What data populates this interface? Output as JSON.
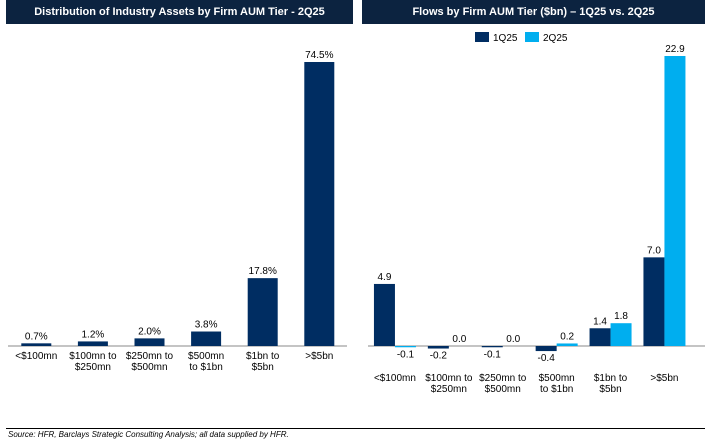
{
  "chart_data": [
    {
      "type": "bar",
      "title": "Distribution of Industry Assets by Firm AUM Tier - 2Q25",
      "categories": [
        "<$100mn",
        "$100mn to $250mn",
        "$250mn to $500mn",
        "$500mn to $1bn",
        "$1bn to $5bn",
        ">$5bn"
      ],
      "category_lines": [
        [
          "<$100mn"
        ],
        [
          "$100mn to",
          "$250mn"
        ],
        [
          "$250mn to",
          "$500mn"
        ],
        [
          "$500mn",
          "to $1bn"
        ],
        [
          "$1bn to",
          "$5bn"
        ],
        [
          ">$5bn"
        ]
      ],
      "series": [
        {
          "name": "2Q25",
          "values": [
            0.7,
            1.2,
            2.0,
            3.8,
            17.8,
            74.5
          ],
          "labels": [
            "0.7%",
            "1.2%",
            "2.0%",
            "3.8%",
            "17.8%",
            "74.5%"
          ],
          "color": "#002d62"
        }
      ],
      "ylim": [
        0,
        80
      ],
      "grid": false,
      "legend": "none"
    },
    {
      "type": "bar",
      "title": "Flows by Firm AUM Tier ($bn) – 1Q25 vs. 2Q25",
      "categories": [
        "<$100mn",
        "$100mn to $250mn",
        "$250mn to $500mn",
        "$500mn to $1bn",
        "$1bn to $5bn",
        ">$5bn"
      ],
      "category_lines": [
        [
          "<$100mn"
        ],
        [
          "$100mn to",
          "$250mn"
        ],
        [
          "$250mn to",
          "$500mn"
        ],
        [
          "$500mn",
          "to $1bn"
        ],
        [
          "$1bn to",
          "$5bn"
        ],
        [
          ">$5bn"
        ]
      ],
      "series": [
        {
          "name": "1Q25",
          "values": [
            4.9,
            -0.2,
            -0.1,
            -0.4,
            1.4,
            7.0
          ],
          "labels": [
            "4.9",
            "-0.2",
            "-0.1",
            "-0.4",
            "1.4",
            "7.0"
          ],
          "color": "#002d62"
        },
        {
          "name": "2Q25",
          "values": [
            -0.1,
            0.0,
            0.0,
            0.2,
            1.8,
            22.9
          ],
          "labels": [
            "-0.1",
            "0.0",
            "0.0",
            "0.2",
            "1.8",
            "22.9"
          ],
          "color": "#00aeef"
        }
      ],
      "ylim": [
        -1,
        24
      ],
      "grid": false,
      "legend": "top-center"
    }
  ],
  "source": "Source: HFR, Barclays Strategic Consulting Analysis; all data supplied by HFR."
}
